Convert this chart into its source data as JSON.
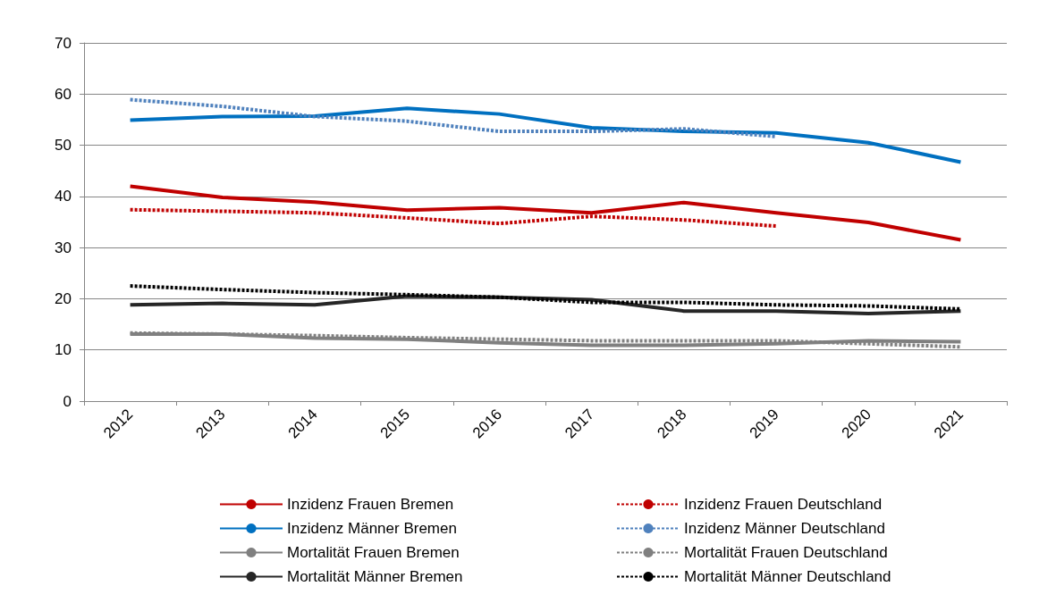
{
  "chart_data": {
    "type": "line",
    "categories": [
      "2012",
      "2013",
      "2014",
      "2015",
      "2016",
      "2017",
      "2018",
      "2019",
      "2020",
      "2021"
    ],
    "ylim": [
      0,
      70
    ],
    "yticks": [
      0,
      10,
      20,
      30,
      40,
      50,
      60,
      70
    ],
    "grid": "y",
    "legend": "bottom",
    "marker": "none",
    "series": [
      {
        "name": "Inzidenz Frauen Bremen",
        "color": "#c00000",
        "line_style": "solid",
        "values": [
          42.0,
          39.8,
          38.9,
          37.3,
          37.8,
          36.8,
          38.8,
          36.8,
          34.9,
          31.5
        ]
      },
      {
        "name": "Inzidenz Frauen Deutschland",
        "color": "#c00000",
        "line_style": "dashed",
        "values": [
          37.4,
          37.1,
          36.8,
          35.8,
          34.7,
          36.1,
          35.4,
          34.2,
          null,
          null
        ]
      },
      {
        "name": "Inzidenz Männer Bremen",
        "color": "#0070c0",
        "line_style": "solid",
        "values": [
          54.9,
          55.6,
          55.7,
          57.2,
          56.1,
          53.4,
          52.7,
          52.4,
          50.5,
          46.7
        ]
      },
      {
        "name": "Inzidenz Männer Deutschland",
        "color": "#4f81bd",
        "line_style": "dashed",
        "values": [
          58.9,
          57.6,
          55.6,
          54.7,
          52.7,
          52.7,
          53.2,
          51.7,
          null,
          null
        ]
      },
      {
        "name": "Mortalität Frauen Bremen",
        "color": "#808080",
        "line_style": "solid",
        "values": [
          13.1,
          13.1,
          12.3,
          12.1,
          11.4,
          10.9,
          10.9,
          11.2,
          11.8,
          11.6
        ]
      },
      {
        "name": "Mortalität Frauen Deutschland",
        "color": "#808080",
        "line_style": "dashed",
        "values": [
          13.3,
          13.1,
          12.8,
          12.4,
          12.1,
          11.8,
          11.8,
          11.8,
          11.2,
          10.6
        ]
      },
      {
        "name": "Mortalität Männer Bremen",
        "color": "#262626",
        "line_style": "solid",
        "values": [
          18.8,
          19.1,
          18.8,
          20.5,
          20.3,
          19.8,
          17.6,
          17.6,
          17.1,
          17.6
        ]
      },
      {
        "name": "Mortalität Männer Deutschland",
        "color": "#000000",
        "line_style": "dashed",
        "values": [
          22.5,
          21.8,
          21.2,
          20.8,
          20.3,
          19.3,
          19.3,
          18.8,
          18.6,
          18.0
        ]
      }
    ]
  }
}
